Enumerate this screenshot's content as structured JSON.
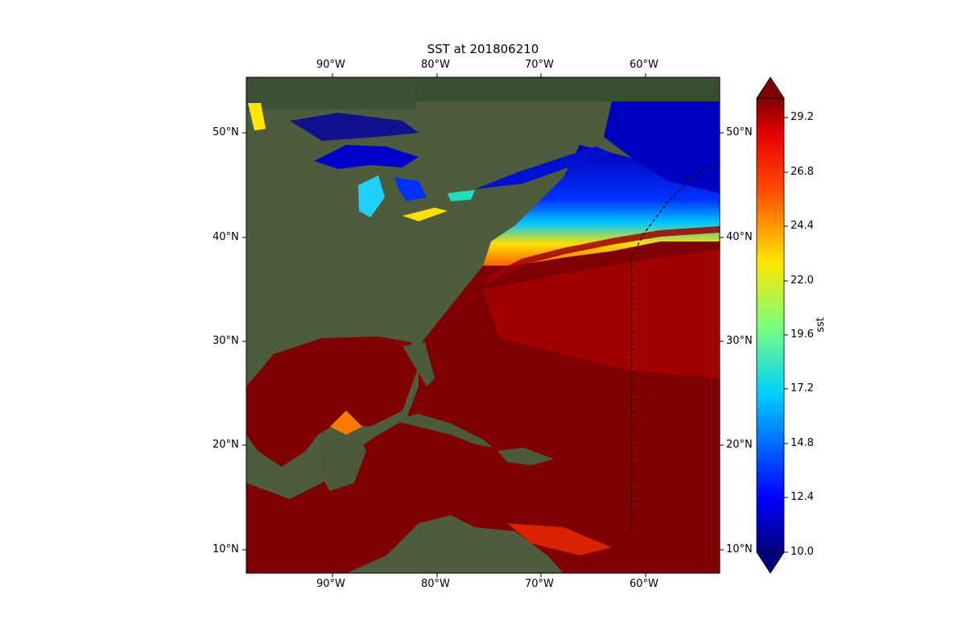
{
  "title": "SST at 201806210",
  "x_ticks": [
    "90°W",
    "80°W",
    "70°W",
    "60°W"
  ],
  "y_ticks": [
    "50°N",
    "40°N",
    "30°N",
    "20°N",
    "10°N"
  ],
  "colorbar": {
    "label": "sst",
    "ticks": [
      "29.2",
      "26.8",
      "24.4",
      "22.0",
      "19.6",
      "17.2",
      "14.8",
      "12.4",
      "10.0"
    ]
  },
  "colors": {
    "land": "#4a5a3a",
    "warm_ocean": "#7f0000",
    "cold_ocean": "#00008b",
    "frame": "#3b4a8a"
  }
}
